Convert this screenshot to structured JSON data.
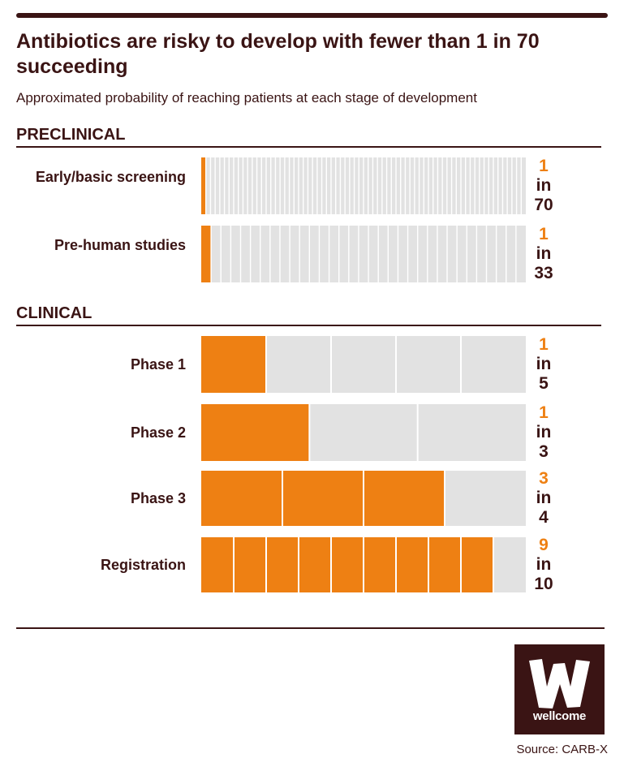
{
  "title": "Antibiotics are risky to develop with fewer than 1 in 70 succeeding",
  "subtitle": "Approximated probability of reaching patients at each stage of development",
  "source": "Source: CARB-X",
  "logo_text": "wellcome",
  "colors": {
    "success": "#ee8013",
    "failure": "#e2e2e2",
    "text": "#3a1414",
    "background": "#ffffff"
  },
  "sections": [
    {
      "title": "PRECLINICAL"
    },
    {
      "title": "CLINICAL"
    }
  ],
  "chart_data": {
    "type": "bar",
    "title": "Antibiotics are risky to develop with fewer than 1 in 70 succeeding",
    "subtitle": "Approximated probability of reaching patients at each stage of development",
    "categories": [
      "Early/basic screening",
      "Pre-human studies",
      "Phase 1",
      "Phase 2",
      "Phase 3",
      "Registration"
    ],
    "groups": [
      "PRECLINICAL",
      "PRECLINICAL",
      "CLINICAL",
      "CLINICAL",
      "CLINICAL",
      "CLINICAL"
    ],
    "numerators": [
      1,
      1,
      1,
      1,
      3,
      9
    ],
    "denominators": [
      70,
      33,
      5,
      3,
      4,
      10
    ],
    "ratio_word": "in",
    "series": [
      {
        "values": [
          0.0143,
          0.0303,
          0.2,
          0.3333,
          0.75,
          0.9
        ]
      }
    ],
    "ylim": [
      0,
      1
    ]
  }
}
